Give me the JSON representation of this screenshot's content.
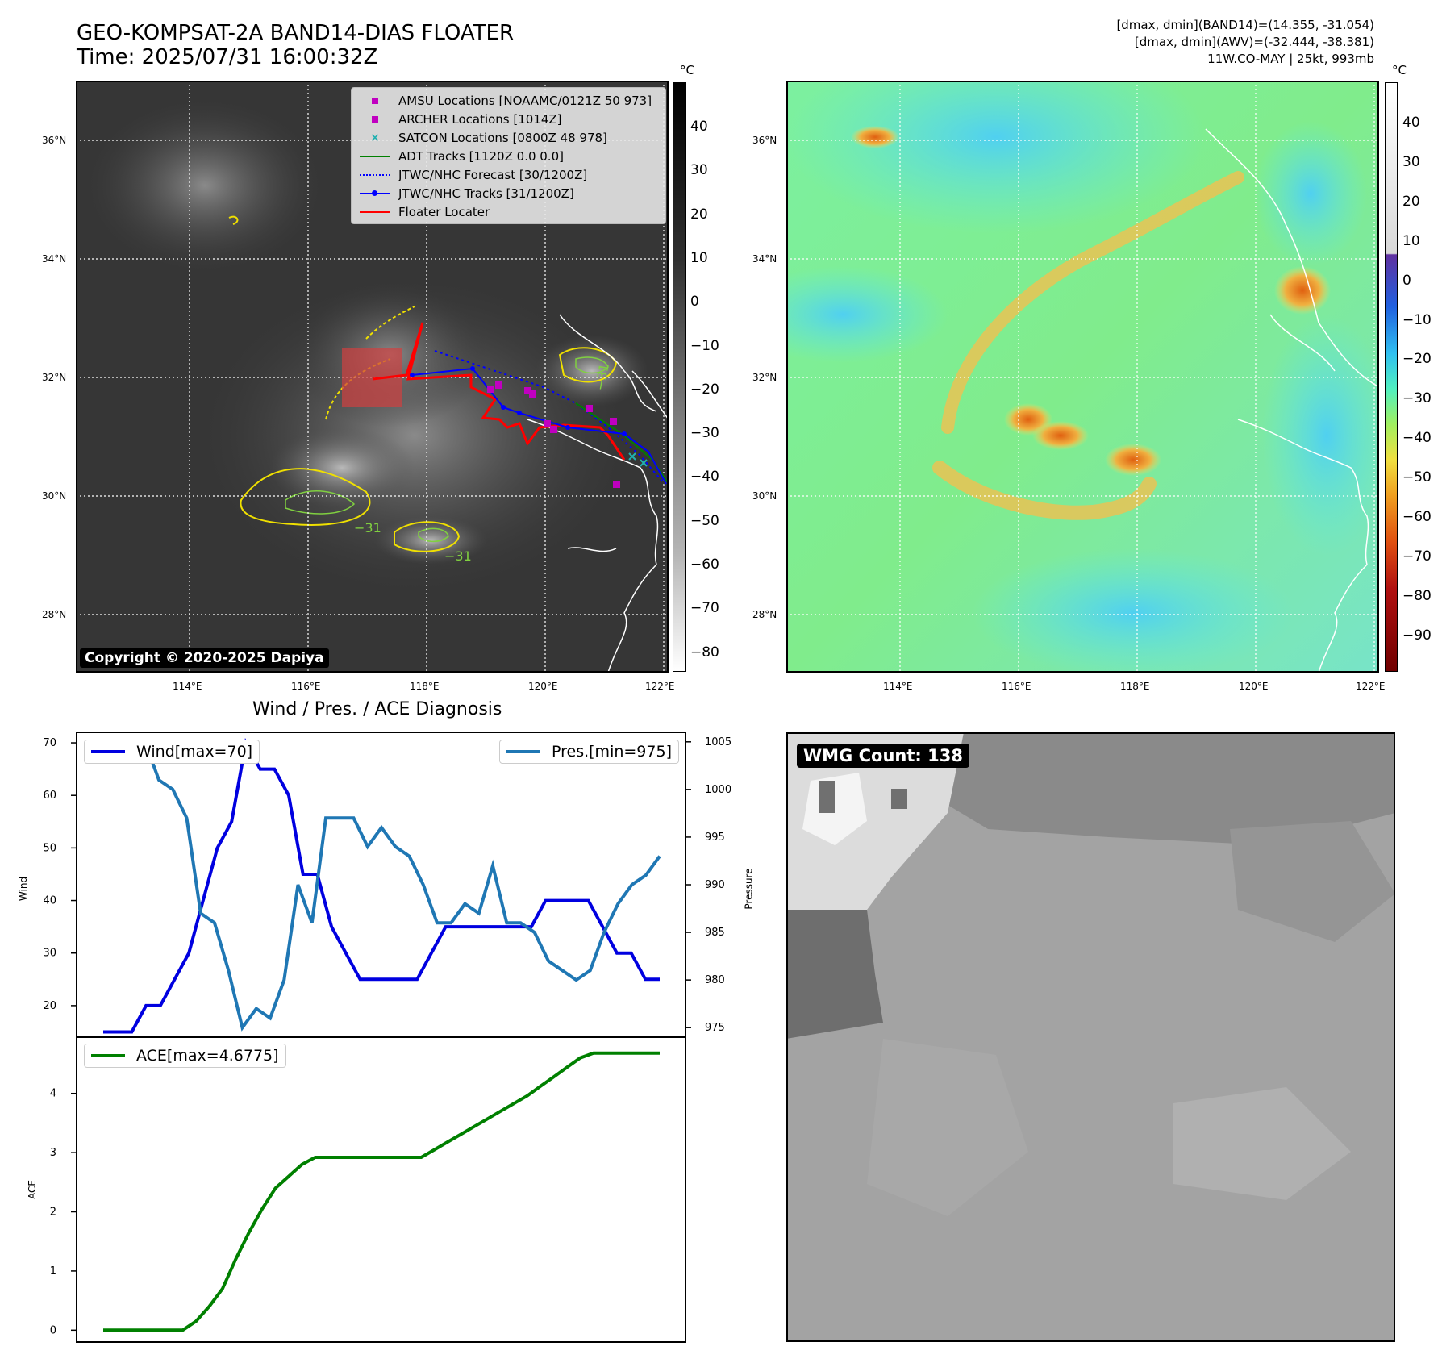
{
  "header": {
    "title_line1": "GEO-KOMPSAT-2A BAND14-DIAS FLOATER",
    "title_line2": "Time: 2025/07/31 16:00:32Z",
    "stats_line1": "[dmax, dmin](BAND14)=(14.355, -31.054)",
    "stats_line2": "[dmax, dmin](AWV)=(-32.444, -38.381)",
    "stats_line3": "11W.CO-MAY | 25kt, 993mb"
  },
  "map_axes": {
    "lat_ticks": [
      "36°N",
      "34°N",
      "32°N",
      "30°N",
      "28°N"
    ],
    "lon_ticks": [
      "114°E",
      "116°E",
      "118°E",
      "120°E",
      "122°E"
    ]
  },
  "ir_panel": {
    "colorbar_unit": "°C",
    "colorbar_ticks": [
      "40",
      "30",
      "20",
      "10",
      "0",
      "−10",
      "−20",
      "−30",
      "−40",
      "−50",
      "−60",
      "−70",
      "−80"
    ],
    "contour_labels": [
      "−31",
      "−31",
      "−31"
    ],
    "copyright": "Copyright © 2020-2025 Dapiya",
    "legend": [
      {
        "label": "AMSU Locations [NOAAMC/0121Z 50 973]",
        "color": "#c000c0",
        "symbol": "square"
      },
      {
        "label": "ARCHER Locations [1014Z]",
        "color": "#c000c0",
        "symbol": "square"
      },
      {
        "label": "SATCON Locations [0800Z 48 978]",
        "color": "#20b0b0",
        "symbol": "x"
      },
      {
        "label": "ADT Tracks [1120Z 0.0 0.0]",
        "color": "#008000",
        "symbol": "line"
      },
      {
        "label": "JTWC/NHC Forecast [30/1200Z]",
        "color": "#0000ff",
        "symbol": "dotted"
      },
      {
        "label": "JTWC/NHC Tracks [31/1200Z]",
        "color": "#0000ff",
        "symbol": "line-dot"
      },
      {
        "label": "Floater Locater",
        "color": "#ff0000",
        "symbol": "line"
      }
    ]
  },
  "awv_panel": {
    "colorbar_unit": "°C",
    "colorbar_ticks": [
      "40",
      "30",
      "20",
      "10",
      "0",
      "−10",
      "−20",
      "−30",
      "−40",
      "−50",
      "−60",
      "−70",
      "−80",
      "−90"
    ]
  },
  "diagnosis": {
    "title": "Wind / Pres. / ACE Diagnosis",
    "wind_ylabel": "Wind",
    "pres_ylabel": "Pressure",
    "ace_ylabel": "ACE",
    "wind_legend": "Wind[max=70]",
    "pres_legend": "Pres.[min=975]",
    "ace_legend": "ACE[max=4.6775]",
    "wind_ticks": [
      "70",
      "60",
      "50",
      "40",
      "30",
      "20"
    ],
    "pres_ticks": [
      "1005",
      "1000",
      "995",
      "990",
      "985",
      "980",
      "975"
    ],
    "ace_ticks": [
      "4",
      "3",
      "2",
      "1",
      "0"
    ]
  },
  "wmg_panel": {
    "label": "WMG Count: 138"
  },
  "colors": {
    "wind": "#0000e0",
    "pressure": "#1f77b4",
    "ace": "#008000"
  },
  "chart_data": [
    {
      "type": "line",
      "title": "Wind / Pres. / ACE Diagnosis",
      "xlabel": "",
      "ylabel": "Wind",
      "ylim": [
        14,
        72
      ],
      "series": [
        {
          "name": "Wind[max=70]",
          "values": [
            15,
            15,
            15,
            20,
            20,
            25,
            30,
            40,
            50,
            55,
            70,
            65,
            65,
            60,
            45,
            45,
            35,
            30,
            25,
            25,
            25,
            25,
            25,
            30,
            35,
            35,
            35,
            35,
            35,
            35,
            35,
            40,
            40,
            40,
            40,
            35,
            30,
            30,
            25,
            25
          ]
        }
      ]
    },
    {
      "type": "line",
      "ylabel": "Pressure",
      "ylim": [
        974,
        1006
      ],
      "series": [
        {
          "name": "Pres.[min=975]",
          "values": [
            1005,
            1005,
            1005,
            1005,
            1001,
            1000,
            997,
            987,
            986,
            981,
            975,
            977,
            976,
            980,
            990,
            986,
            997,
            997,
            997,
            994,
            996,
            994,
            993,
            990,
            986,
            986,
            988,
            987,
            992,
            986,
            986,
            985,
            982,
            981,
            980,
            981,
            985,
            988,
            990,
            991,
            993
          ]
        }
      ]
    },
    {
      "type": "line",
      "ylabel": "ACE",
      "ylim": [
        -0.2,
        4.95
      ],
      "series": [
        {
          "name": "ACE[max=4.6775]",
          "values": [
            0,
            0,
            0,
            0,
            0,
            0,
            0,
            0.15,
            0.4,
            0.7,
            1.2,
            1.65,
            2.05,
            2.4,
            2.6,
            2.8,
            2.92,
            2.92,
            2.92,
            2.92,
            2.92,
            2.92,
            2.92,
            2.92,
            2.92,
            3.05,
            3.18,
            3.31,
            3.44,
            3.57,
            3.7,
            3.83,
            3.96,
            4.12,
            4.28,
            4.44,
            4.6,
            4.68,
            4.68,
            4.68,
            4.68,
            4.68,
            4.68
          ]
        }
      ]
    }
  ]
}
